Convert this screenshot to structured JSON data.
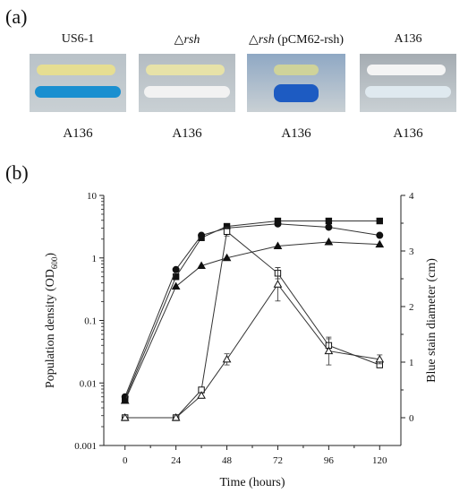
{
  "panel_a": {
    "label": "(a)",
    "plates": [
      {
        "top_label": "US6-1",
        "top_italic": "",
        "top_suffix": "",
        "bottom_label": "A136",
        "top_streak": "#e6de92",
        "bottom_streak": "#1a8fd0",
        "bg": "#b9c2c8"
      },
      {
        "top_label": "△",
        "top_italic": "rsh",
        "top_suffix": "",
        "bottom_label": "A136",
        "top_streak": "#e7e2a8",
        "bottom_streak": "#f2f2f2",
        "bg": "#b4bcc2"
      },
      {
        "top_label": "△",
        "top_italic": "rsh",
        "top_suffix": " (pCM62-rsh)",
        "bottom_label": "A136",
        "top_streak": "#cfd39a",
        "bottom_streak": "#1d5bc2",
        "bg": "#8fa8c4"
      },
      {
        "top_label": "A136",
        "top_italic": "",
        "top_suffix": "",
        "bottom_label": "A136",
        "top_streak": "#f4f4f4",
        "bottom_streak": "#dfe9ef",
        "bg": "#a5acb2"
      }
    ]
  },
  "panel_b": {
    "label": "(b)"
  },
  "chart_data": {
    "type": "line",
    "xlabel": "Time (hours)",
    "ylabel_left_main": "Population density (OD",
    "ylabel_left_sub": "600",
    "ylabel_left_end": ")",
    "ylabel_right": "Blue stain diameter (cm)",
    "x_ticks": [
      "0",
      "24",
      "48",
      "72",
      "96",
      "120"
    ],
    "y_left_ticks": [
      "10",
      "1",
      "0.1",
      "0.01",
      "0.001"
    ],
    "y_left_scale": "log",
    "y_left_range": [
      0.001,
      10
    ],
    "y_right_ticks": [
      "0",
      "1",
      "2",
      "3",
      "4"
    ],
    "y_right_range": [
      -0.5,
      4
    ],
    "xlim": [
      -10,
      130
    ],
    "series": [
      {
        "marker": "square-filled",
        "axis": "left",
        "x": [
          0,
          24,
          36,
          48,
          72,
          96,
          120
        ],
        "y": [
          0.0055,
          0.5,
          2.1,
          3.2,
          3.9,
          3.9,
          3.9
        ]
      },
      {
        "marker": "circle-filled",
        "axis": "left",
        "x": [
          0,
          24,
          36,
          48,
          72,
          96,
          120
        ],
        "y": [
          0.006,
          0.65,
          2.3,
          3.0,
          3.5,
          3.1,
          2.3
        ]
      },
      {
        "marker": "triangle-filled",
        "axis": "left",
        "x": [
          0,
          24,
          36,
          48,
          72,
          96,
          120
        ],
        "y": [
          0.0052,
          0.35,
          0.75,
          1.0,
          1.55,
          1.8,
          1.65
        ]
      },
      {
        "marker": "square-open",
        "axis": "right",
        "x": [
          0,
          24,
          36,
          48,
          72,
          96,
          120
        ],
        "y": [
          0,
          0,
          0.5,
          3.35,
          2.6,
          1.3,
          0.95
        ],
        "err": [
          0,
          0,
          0.05,
          0.08,
          0.1,
          0.12,
          0.05
        ]
      },
      {
        "marker": "triangle-open",
        "axis": "right",
        "x": [
          0,
          24,
          36,
          48,
          72,
          96,
          120
        ],
        "y": [
          0,
          0,
          0.4,
          1.05,
          2.4,
          1.2,
          1.05
        ],
        "err": [
          0,
          0,
          0.05,
          0.1,
          0.3,
          0.25,
          0.08
        ]
      }
    ]
  }
}
